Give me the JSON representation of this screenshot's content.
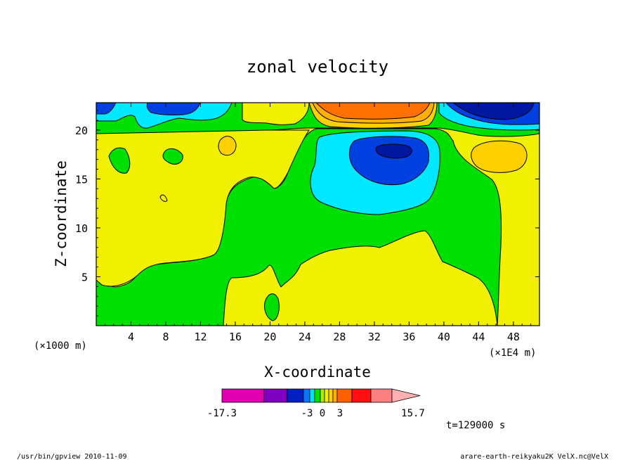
{
  "chart_data": {
    "type": "heatmap",
    "title": "zonal velocity",
    "xlabel": "X-coordinate",
    "ylabel": "Z-coordinate",
    "x_unit_left": "(×1000 m)",
    "x_unit_right": "(×1E4 m)",
    "x_ticks": [
      "4",
      "8",
      "12",
      "16",
      "20",
      "24",
      "28",
      "32",
      "36",
      "40",
      "44",
      "48"
    ],
    "y_ticks": [
      "5",
      "10",
      "15",
      "20"
    ],
    "xlim": [
      0,
      51
    ],
    "ylim": [
      0,
      22.8
    ],
    "colorbar": {
      "labels": [
        "-17.3",
        "-3",
        "0",
        "3",
        "15.7"
      ],
      "levels": [
        "#e000b0",
        "#8000c0",
        "#0020c0",
        "#1070ff",
        "#00e0ff",
        "#00e000",
        "#a8f000",
        "#f0f000",
        "#ffd000",
        "#ffb000",
        "#ff6000",
        "#ff1010",
        "#ff8080",
        "#ffb0b0"
      ]
    },
    "regions_colors": {
      "background": "#f0f000",
      "green": "#00e000",
      "cyan": "#00e8ff",
      "blue": "#0040e0",
      "darkblue": "#0018a0",
      "orange": "#ff7000",
      "lightorange": "#ffb000",
      "gold": "#ffd000"
    },
    "time_label": "t=129000 s"
  },
  "footer": {
    "left": "/usr/bin/gpview  2010-11-09",
    "right": "arare-earth-reikyaku2K_VelX.nc@VelX"
  }
}
